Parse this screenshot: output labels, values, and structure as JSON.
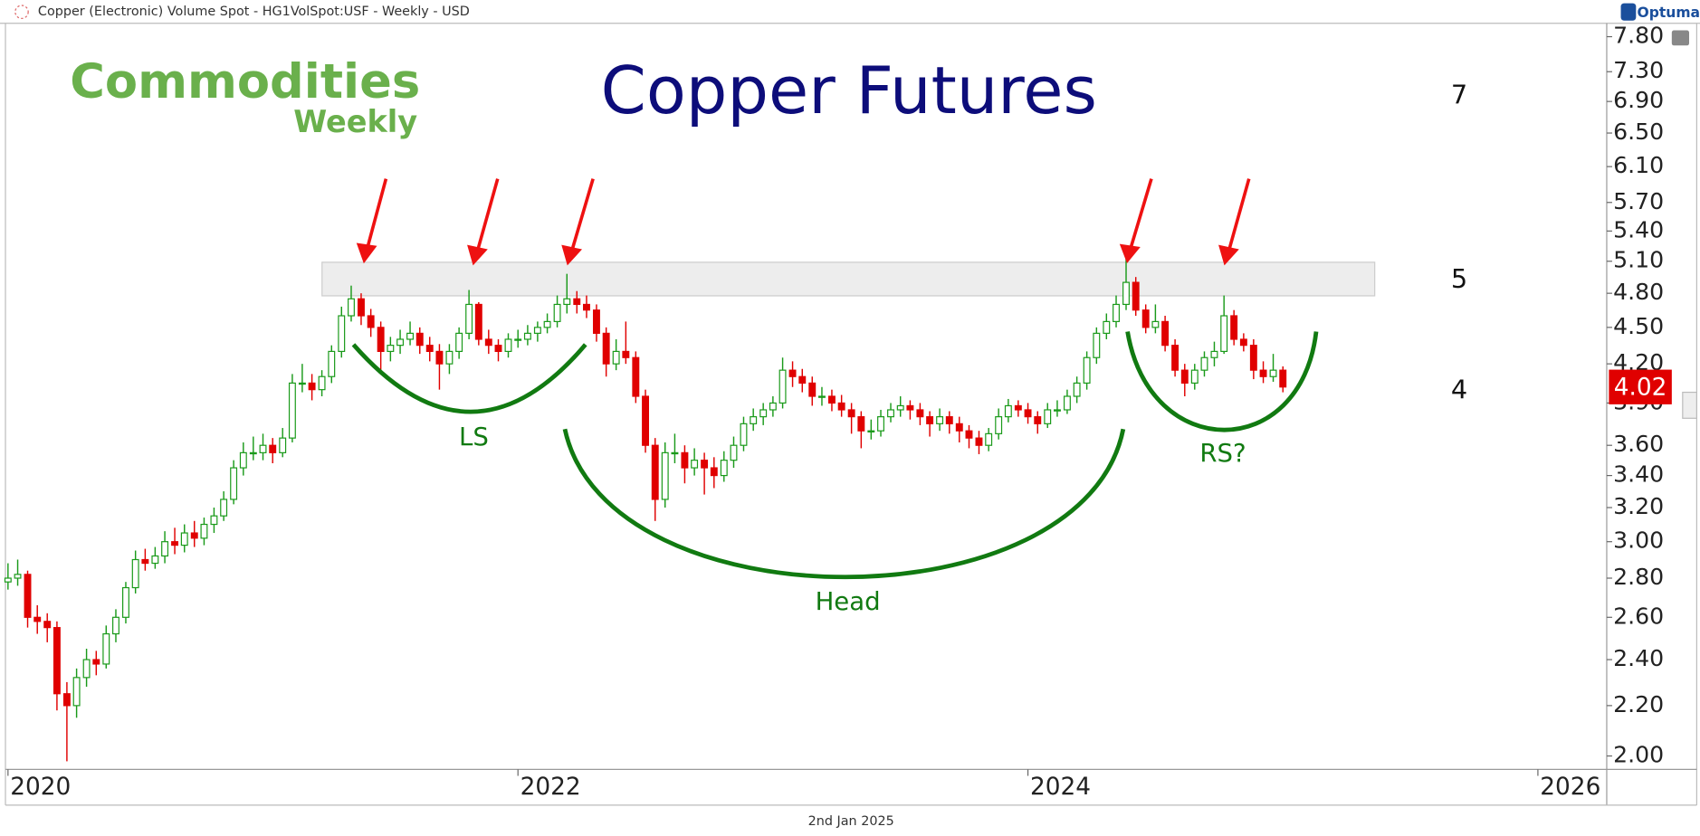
{
  "header": "Copper (Electronic) Volume Spot - HG1VolSpot:USF - Weekly - USD",
  "brand": "Optuma",
  "logo": {
    "line1": "Commodities",
    "line2": "Weekly"
  },
  "footer": "2nd Jan 2025",
  "chart_data": {
    "type": "candlestick",
    "title": "Copper Futures",
    "log_scale": true,
    "grid": false,
    "up_color": "#1a9a1a",
    "down_color": "#e00000",
    "annotations": [
      "LS",
      "Head",
      "RS?",
      "7",
      "5",
      "4"
    ],
    "xlim": [
      2019.99,
      2026.27
    ],
    "xticks": [
      2020,
      2022,
      2024,
      2026
    ],
    "ylim": [
      1.95,
      8.0
    ],
    "yticks": [
      {
        "value": 2.0,
        "label": "2.00"
      },
      {
        "value": 2.2,
        "label": "2.20"
      },
      {
        "value": 2.4,
        "label": "2.40"
      },
      {
        "value": 2.6,
        "label": "2.60"
      },
      {
        "value": 2.8,
        "label": "2.80"
      },
      {
        "value": 3.0,
        "label": "3.00"
      },
      {
        "value": 3.2,
        "label": "3.20"
      },
      {
        "value": 3.4,
        "label": "3.40"
      },
      {
        "value": 3.6,
        "label": "3.60"
      },
      {
        "value": 3.9,
        "label": "3.90"
      },
      {
        "value": 4.2,
        "label": "4.20"
      },
      {
        "value": 4.5,
        "label": "4.50"
      },
      {
        "value": 4.8,
        "label": "4.80"
      },
      {
        "value": 5.1,
        "label": "5.10"
      },
      {
        "value": 5.4,
        "label": "5.40"
      },
      {
        "value": 5.7,
        "label": "5.70"
      },
      {
        "value": 6.1,
        "label": "6.10"
      },
      {
        "value": 6.5,
        "label": "6.50"
      },
      {
        "value": 6.9,
        "label": "6.90"
      },
      {
        "value": 7.3,
        "label": "7.30"
      },
      {
        "value": 7.8,
        "label": "7.80"
      }
    ],
    "x": [
      2020,
      2020.038,
      2020.077,
      2020.115,
      2020.154,
      2020.192,
      2020.231,
      2020.269,
      2020.308,
      2020.346,
      2020.385,
      2020.423,
      2020.462,
      2020.5,
      2020.538,
      2020.577,
      2020.615,
      2020.654,
      2020.692,
      2020.731,
      2020.769,
      2020.808,
      2020.846,
      2020.885,
      2020.923,
      2020.962,
      2021,
      2021.038,
      2021.077,
      2021.115,
      2021.154,
      2021.192,
      2021.231,
      2021.269,
      2021.308,
      2021.346,
      2021.385,
      2021.423,
      2021.462,
      2021.5,
      2021.538,
      2021.577,
      2021.615,
      2021.654,
      2021.692,
      2021.731,
      2021.769,
      2021.808,
      2021.846,
      2021.885,
      2021.923,
      2021.962,
      2022,
      2022.038,
      2022.077,
      2022.115,
      2022.154,
      2022.192,
      2022.231,
      2022.269,
      2022.308,
      2022.346,
      2022.385,
      2022.423,
      2022.462,
      2022.5,
      2022.538,
      2022.577,
      2022.615,
      2022.654,
      2022.692,
      2022.731,
      2022.769,
      2022.808,
      2022.846,
      2022.885,
      2022.923,
      2022.962,
      2023,
      2023.038,
      2023.077,
      2023.115,
      2023.154,
      2023.192,
      2023.231,
      2023.269,
      2023.308,
      2023.346,
      2023.385,
      2023.423,
      2023.462,
      2023.5,
      2023.538,
      2023.577,
      2023.615,
      2023.654,
      2023.692,
      2023.731,
      2023.769,
      2023.808,
      2023.846,
      2023.885,
      2023.923,
      2023.962,
      2024,
      2024.038,
      2024.077,
      2024.115,
      2024.154,
      2024.192,
      2024.231,
      2024.269,
      2024.308,
      2024.346,
      2024.385,
      2024.423,
      2024.462,
      2024.5,
      2024.538,
      2024.577,
      2024.615,
      2024.654,
      2024.692,
      2024.731,
      2024.769,
      2024.808,
      2024.846,
      2024.885,
      2024.923,
      2024.962,
      2025
    ],
    "ohlc": [
      [
        2.78,
        2.88,
        2.74,
        2.8
      ],
      [
        2.8,
        2.9,
        2.76,
        2.82
      ],
      [
        2.82,
        2.84,
        2.55,
        2.6
      ],
      [
        2.6,
        2.66,
        2.52,
        2.58
      ],
      [
        2.58,
        2.62,
        2.48,
        2.55
      ],
      [
        2.55,
        2.58,
        2.18,
        2.25
      ],
      [
        2.25,
        2.3,
        1.98,
        2.2
      ],
      [
        2.2,
        2.36,
        2.15,
        2.32
      ],
      [
        2.32,
        2.45,
        2.28,
        2.4
      ],
      [
        2.4,
        2.44,
        2.33,
        2.38
      ],
      [
        2.38,
        2.56,
        2.36,
        2.52
      ],
      [
        2.52,
        2.64,
        2.48,
        2.6
      ],
      [
        2.6,
        2.78,
        2.57,
        2.75
      ],
      [
        2.75,
        2.95,
        2.72,
        2.9
      ],
      [
        2.9,
        2.96,
        2.84,
        2.88
      ],
      [
        2.88,
        2.97,
        2.85,
        2.92
      ],
      [
        2.92,
        3.06,
        2.88,
        3.0
      ],
      [
        3.0,
        3.08,
        2.93,
        2.98
      ],
      [
        2.98,
        3.1,
        2.94,
        3.05
      ],
      [
        3.05,
        3.12,
        2.97,
        3.02
      ],
      [
        3.02,
        3.14,
        2.98,
        3.1
      ],
      [
        3.1,
        3.2,
        3.05,
        3.15
      ],
      [
        3.15,
        3.3,
        3.12,
        3.25
      ],
      [
        3.25,
        3.5,
        3.22,
        3.45
      ],
      [
        3.45,
        3.62,
        3.4,
        3.55
      ],
      [
        3.55,
        3.66,
        3.5,
        3.55
      ],
      [
        3.55,
        3.68,
        3.5,
        3.6
      ],
      [
        3.6,
        3.65,
        3.48,
        3.55
      ],
      [
        3.55,
        3.72,
        3.52,
        3.65
      ],
      [
        3.65,
        4.12,
        3.62,
        4.05
      ],
      [
        4.05,
        4.2,
        3.98,
        4.05
      ],
      [
        4.05,
        4.12,
        3.92,
        4.0
      ],
      [
        4.0,
        4.15,
        3.95,
        4.1
      ],
      [
        4.1,
        4.35,
        4.05,
        4.3
      ],
      [
        4.3,
        4.68,
        4.25,
        4.6
      ],
      [
        4.6,
        4.87,
        4.55,
        4.75
      ],
      [
        4.75,
        4.8,
        4.52,
        4.6
      ],
      [
        4.6,
        4.66,
        4.42,
        4.5
      ],
      [
        4.5,
        4.55,
        4.15,
        4.3
      ],
      [
        4.3,
        4.42,
        4.22,
        4.35
      ],
      [
        4.35,
        4.48,
        4.28,
        4.4
      ],
      [
        4.4,
        4.55,
        4.35,
        4.45
      ],
      [
        4.45,
        4.5,
        4.28,
        4.35
      ],
      [
        4.35,
        4.42,
        4.22,
        4.3
      ],
      [
        4.3,
        4.36,
        4.0,
        4.2
      ],
      [
        4.2,
        4.36,
        4.12,
        4.3
      ],
      [
        4.3,
        4.5,
        4.24,
        4.45
      ],
      [
        4.45,
        4.83,
        4.4,
        4.7
      ],
      [
        4.7,
        4.72,
        4.35,
        4.4
      ],
      [
        4.4,
        4.48,
        4.28,
        4.35
      ],
      [
        4.35,
        4.4,
        4.22,
        4.3
      ],
      [
        4.3,
        4.45,
        4.25,
        4.4
      ],
      [
        4.4,
        4.48,
        4.33,
        4.4
      ],
      [
        4.4,
        4.52,
        4.35,
        4.45
      ],
      [
        4.45,
        4.55,
        4.38,
        4.5
      ],
      [
        4.5,
        4.62,
        4.45,
        4.55
      ],
      [
        4.55,
        4.78,
        4.5,
        4.7
      ],
      [
        4.7,
        4.98,
        4.62,
        4.75
      ],
      [
        4.75,
        4.82,
        4.62,
        4.7
      ],
      [
        4.7,
        4.78,
        4.58,
        4.65
      ],
      [
        4.65,
        4.7,
        4.38,
        4.45
      ],
      [
        4.45,
        4.5,
        4.1,
        4.2
      ],
      [
        4.2,
        4.4,
        4.15,
        4.3
      ],
      [
        4.3,
        4.55,
        4.2,
        4.25
      ],
      [
        4.25,
        4.3,
        3.9,
        3.95
      ],
      [
        3.95,
        4.0,
        3.55,
        3.6
      ],
      [
        3.6,
        3.65,
        3.12,
        3.25
      ],
      [
        3.25,
        3.62,
        3.2,
        3.55
      ],
      [
        3.55,
        3.68,
        3.48,
        3.55
      ],
      [
        3.55,
        3.6,
        3.35,
        3.45
      ],
      [
        3.45,
        3.58,
        3.4,
        3.5
      ],
      [
        3.5,
        3.55,
        3.28,
        3.45
      ],
      [
        3.45,
        3.52,
        3.32,
        3.4
      ],
      [
        3.4,
        3.56,
        3.36,
        3.5
      ],
      [
        3.5,
        3.66,
        3.45,
        3.6
      ],
      [
        3.6,
        3.8,
        3.56,
        3.75
      ],
      [
        3.75,
        3.86,
        3.7,
        3.8
      ],
      [
        3.8,
        3.9,
        3.74,
        3.85
      ],
      [
        3.85,
        3.95,
        3.8,
        3.9
      ],
      [
        3.9,
        4.25,
        3.86,
        4.15
      ],
      [
        4.15,
        4.22,
        4.02,
        4.1
      ],
      [
        4.1,
        4.16,
        3.98,
        4.05
      ],
      [
        4.05,
        4.1,
        3.88,
        3.95
      ],
      [
        3.95,
        4.02,
        3.88,
        3.95
      ],
      [
        3.95,
        4.0,
        3.84,
        3.9
      ],
      [
        3.9,
        3.96,
        3.8,
        3.85
      ],
      [
        3.85,
        3.9,
        3.68,
        3.8
      ],
      [
        3.8,
        3.84,
        3.58,
        3.7
      ],
      [
        3.7,
        3.78,
        3.64,
        3.7
      ],
      [
        3.7,
        3.85,
        3.66,
        3.8
      ],
      [
        3.8,
        3.9,
        3.76,
        3.85
      ],
      [
        3.85,
        3.95,
        3.8,
        3.88
      ],
      [
        3.88,
        3.92,
        3.78,
        3.85
      ],
      [
        3.85,
        3.9,
        3.74,
        3.8
      ],
      [
        3.8,
        3.84,
        3.66,
        3.75
      ],
      [
        3.75,
        3.86,
        3.7,
        3.8
      ],
      [
        3.8,
        3.84,
        3.68,
        3.75
      ],
      [
        3.75,
        3.8,
        3.62,
        3.7
      ],
      [
        3.7,
        3.74,
        3.58,
        3.65
      ],
      [
        3.65,
        3.7,
        3.54,
        3.6
      ],
      [
        3.6,
        3.72,
        3.56,
        3.68
      ],
      [
        3.68,
        3.86,
        3.64,
        3.8
      ],
      [
        3.8,
        3.93,
        3.76,
        3.88
      ],
      [
        3.88,
        3.92,
        3.8,
        3.85
      ],
      [
        3.85,
        3.9,
        3.75,
        3.8
      ],
      [
        3.8,
        3.84,
        3.68,
        3.75
      ],
      [
        3.75,
        3.9,
        3.72,
        3.85
      ],
      [
        3.85,
        3.92,
        3.8,
        3.85
      ],
      [
        3.85,
        4.0,
        3.82,
        3.95
      ],
      [
        3.95,
        4.1,
        3.9,
        4.05
      ],
      [
        4.05,
        4.3,
        4.0,
        4.25
      ],
      [
        4.25,
        4.5,
        4.2,
        4.45
      ],
      [
        4.45,
        4.62,
        4.4,
        4.55
      ],
      [
        4.55,
        4.78,
        4.5,
        4.7
      ],
      [
        4.7,
        5.15,
        4.65,
        4.9
      ],
      [
        4.9,
        4.95,
        4.6,
        4.65
      ],
      [
        4.65,
        4.7,
        4.45,
        4.5
      ],
      [
        4.5,
        4.7,
        4.45,
        4.55
      ],
      [
        4.55,
        4.6,
        4.3,
        4.35
      ],
      [
        4.35,
        4.4,
        4.1,
        4.15
      ],
      [
        4.15,
        4.2,
        3.95,
        4.05
      ],
      [
        4.05,
        4.2,
        4.0,
        4.15
      ],
      [
        4.15,
        4.3,
        4.1,
        4.25
      ],
      [
        4.25,
        4.38,
        4.18,
        4.3
      ],
      [
        4.3,
        4.78,
        4.28,
        4.6
      ],
      [
        4.6,
        4.65,
        4.35,
        4.4
      ],
      [
        4.4,
        4.45,
        4.3,
        4.35
      ],
      [
        4.35,
        4.4,
        4.08,
        4.15
      ],
      [
        4.15,
        4.22,
        4.05,
        4.1
      ],
      [
        4.1,
        4.28,
        4.06,
        4.15
      ],
      [
        4.15,
        4.18,
        3.98,
        4.02
      ]
    ]
  }
}
